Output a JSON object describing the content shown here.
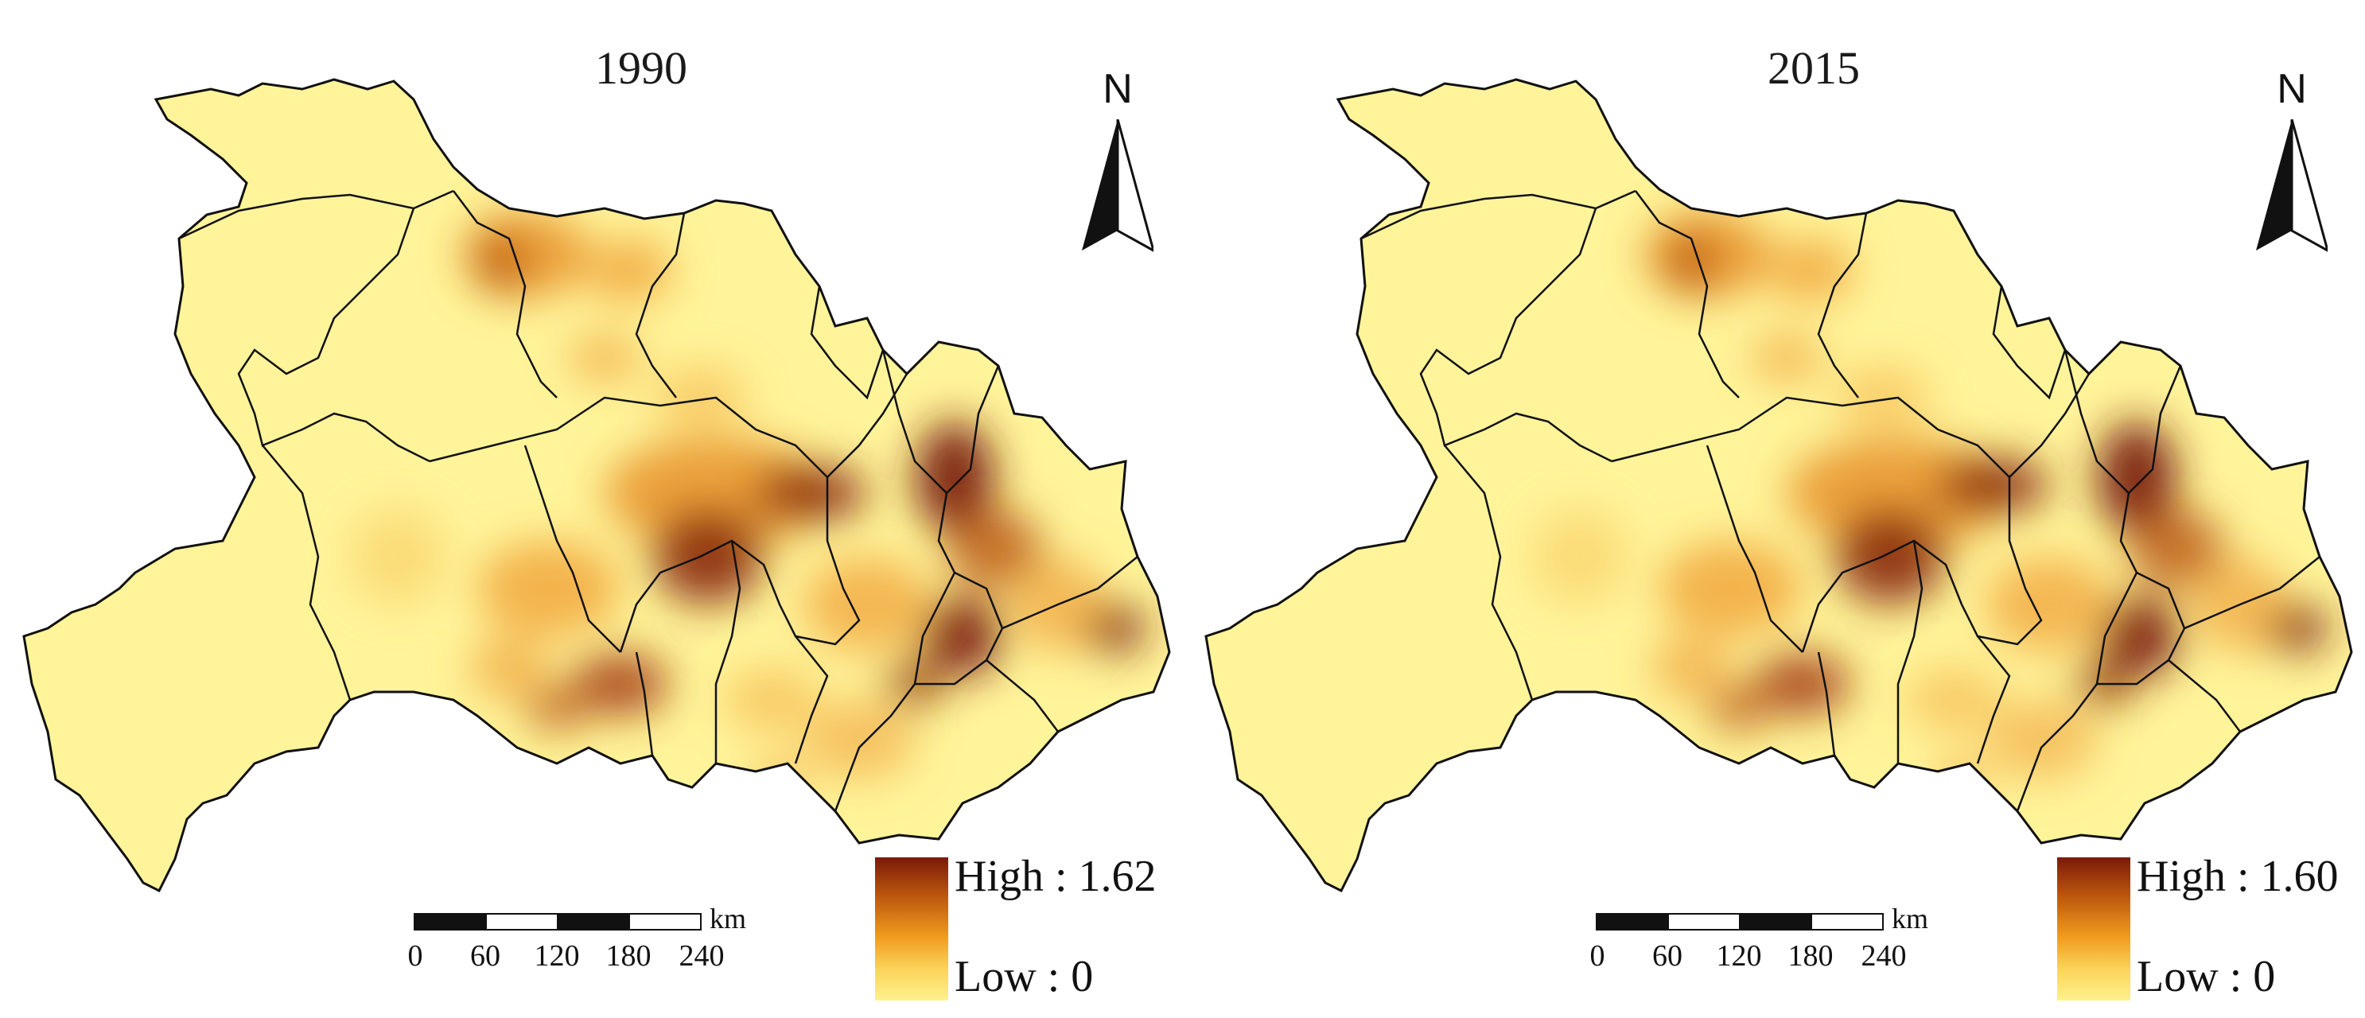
{
  "maps": [
    {
      "title": "1990",
      "north_label": "N",
      "legend": {
        "high_label": "High : 1.62",
        "low_label": "Low : 0",
        "colors": [
          "#7a1a0a",
          "#f09a1e",
          "#fff28c"
        ]
      },
      "scale": {
        "unit": "km",
        "ticks": [
          "0",
          "60",
          "120",
          "180",
          "240"
        ]
      }
    },
    {
      "title": "2015",
      "north_label": "N",
      "legend": {
        "high_label": "High : 1.60",
        "low_label": "Low : 0",
        "colors": [
          "#7a1a0a",
          "#f09a1e",
          "#fff28c"
        ]
      },
      "scale": {
        "unit": "km",
        "ticks": [
          "0",
          "60",
          "120",
          "180",
          "240"
        ]
      }
    }
  ]
}
